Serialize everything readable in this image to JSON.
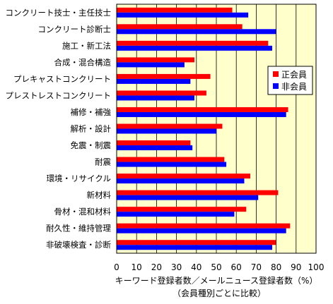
{
  "chart_data": {
    "type": "bar",
    "orientation": "horizontal",
    "categories": [
      "コンクリート技士・主任技士",
      "コンクリート診断士",
      "施工・新工法",
      "合成・混合構造",
      "プレキャストコンクリート",
      "プレストレストコンクリート",
      "補修・補強",
      "解析・設計",
      "免震・制震",
      "耐震",
      "環境・リサイクル",
      "新材料",
      "骨材・混和材料",
      "耐久性・維持管理",
      "非破壊検査・診断"
    ],
    "series": [
      {
        "name": "正会員",
        "color": "#ff0000",
        "values": [
          58,
          63,
          76,
          39,
          47,
          45,
          86,
          53,
          37,
          54,
          67,
          81,
          65,
          87,
          80
        ]
      },
      {
        "name": "非会員",
        "color": "#0000ff",
        "values": [
          66,
          80,
          78,
          34,
          37,
          39,
          85,
          50,
          38,
          55,
          64,
          71,
          59,
          85,
          78
        ]
      }
    ],
    "xlabel": "キーワード登録者数／メールニュース登録者数（%）",
    "xlabel_sub": "（会員種別ごとに比較）",
    "xlim": [
      0,
      100
    ],
    "xticks": [
      "0",
      "10",
      "20",
      "30",
      "40",
      "50",
      "60",
      "70",
      "80",
      "90",
      "100"
    ],
    "grid": true,
    "legend_position": "right",
    "plot_background": "#ffffcc"
  }
}
